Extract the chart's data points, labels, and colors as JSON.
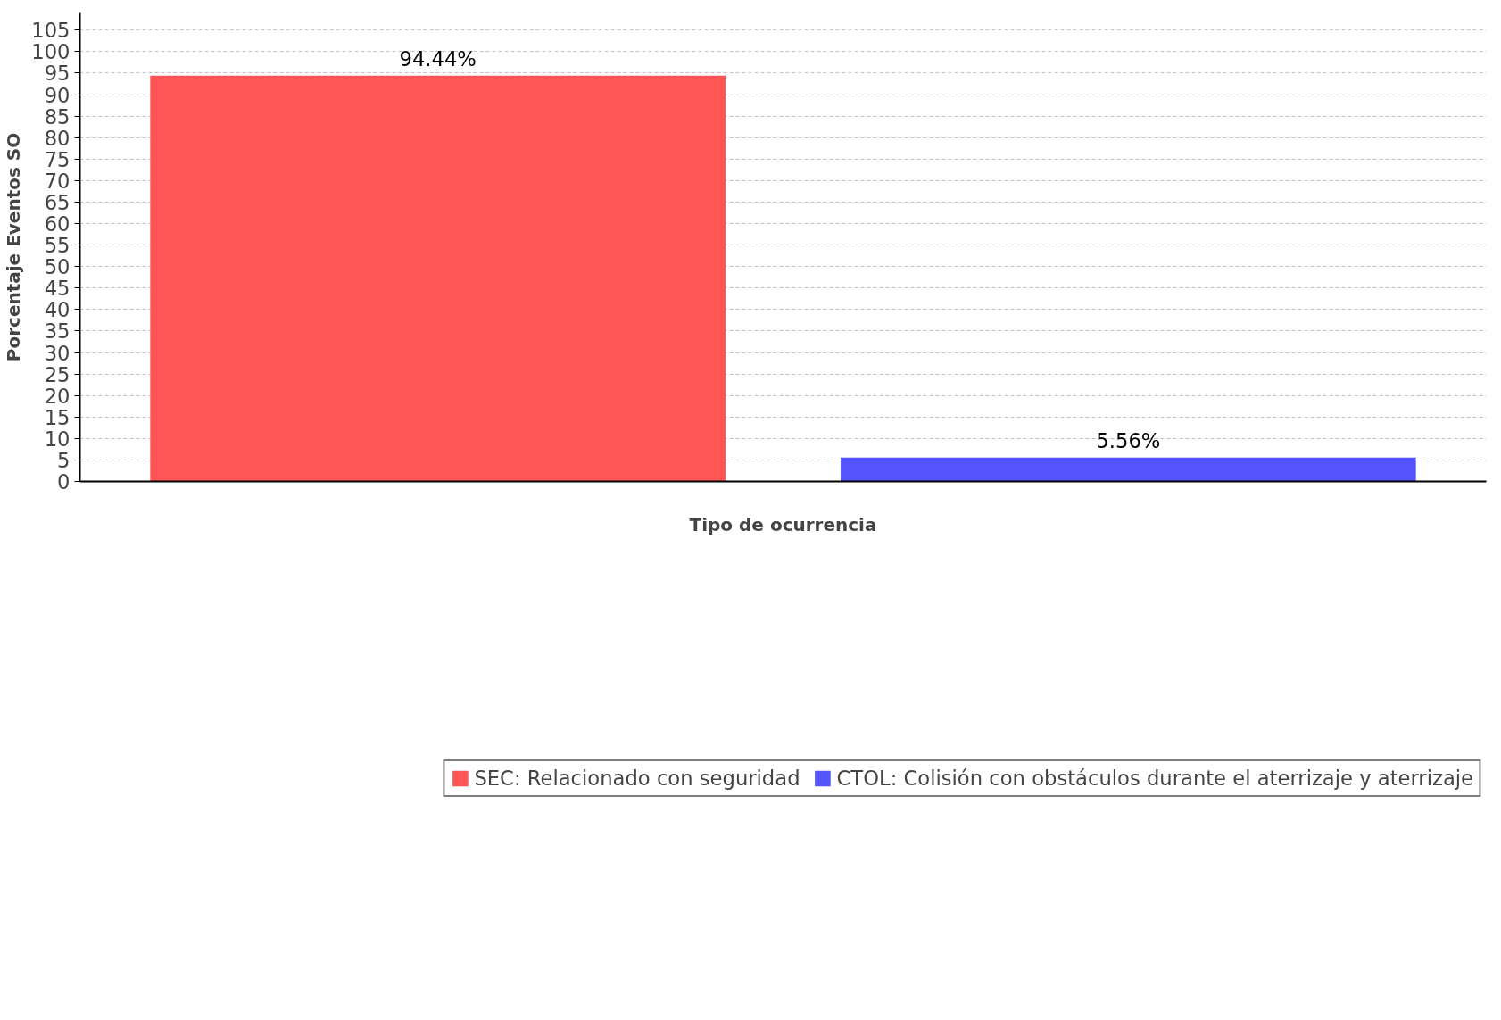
{
  "chart_data": {
    "type": "bar",
    "xlabel": "Tipo de ocurrencia",
    "ylabel": "Porcentaje Eventos SO",
    "categories": [
      null
    ],
    "series": [
      {
        "name": "SEC: Relacionado con seguridad",
        "color": "#ff5555",
        "values": [
          94.44
        ],
        "value_labels": [
          "94.44%"
        ]
      },
      {
        "name": "CTOL: Colisión con obstáculos durante el aterrizaje y aterrizaje",
        "color": "#5555ff",
        "values": [
          5.56
        ],
        "value_labels": [
          "5.56%"
        ]
      }
    ],
    "ylim": [
      0,
      109
    ],
    "yticks": [
      0,
      5,
      10,
      15,
      20,
      25,
      30,
      35,
      40,
      45,
      50,
      55,
      60,
      65,
      70,
      75,
      80,
      85,
      90,
      95,
      100,
      105
    ],
    "grid": "y",
    "legend": "bottom",
    "tick_labels": "y"
  }
}
